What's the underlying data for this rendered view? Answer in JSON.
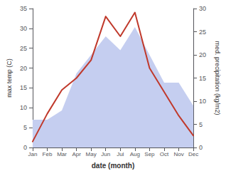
{
  "chart_data": {
    "type": "line",
    "categories": [
      "Jan",
      "Feb",
      "Mar",
      "Apr",
      "May",
      "Jun",
      "Jul",
      "Aug",
      "Sep",
      "Oct",
      "Nov",
      "Dec"
    ],
    "xlabel": "date (month)",
    "ylabel": "max temp (C)",
    "y2label": "med. precipitation (kg/m2)",
    "series": [
      {
        "type": "area",
        "axis": "y2",
        "color": "#c5cef0",
        "values": [
          6,
          6,
          8,
          16,
          20,
          24,
          21,
          26,
          20,
          14,
          14,
          9
        ]
      },
      {
        "type": "line",
        "axis": "y",
        "color": "#c0392b",
        "values": [
          1.5,
          8.5,
          14.5,
          17.5,
          22.0,
          33.0,
          28.0,
          34.0,
          20.0,
          14.0,
          8.0,
          3.0
        ]
      }
    ],
    "ylim": [
      0,
      35
    ],
    "yticks": [
      0,
      5,
      10,
      15,
      20,
      25,
      30,
      35
    ],
    "y2lim": [
      0,
      30
    ],
    "y2ticks": [
      0,
      5,
      10,
      15,
      20,
      25,
      30
    ],
    "grid": false
  }
}
